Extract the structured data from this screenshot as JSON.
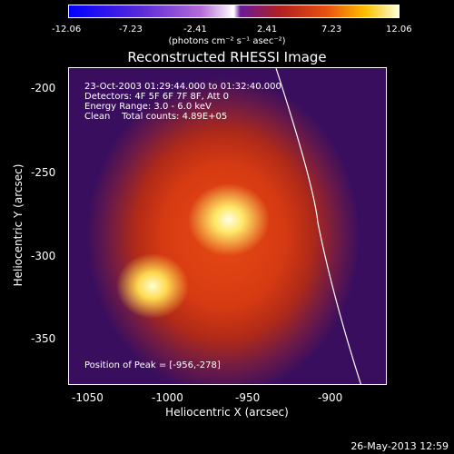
{
  "colorbar": {
    "ticks": [
      "-12.06",
      "-7.23",
      "-2.41",
      "2.41",
      "7.23",
      "12.06"
    ],
    "units": "(photons cm⁻² s⁻¹ asec⁻²)"
  },
  "title": "Reconstructed RHESSI Image",
  "info": {
    "time": "23-Oct-2003 01:29:44.000 to 01:32:40.000",
    "detectors": "Detectors: 4F 5F 6F 7F 8F, Att 0",
    "energy": "Energy Range: 3.0 - 6.0 keV",
    "clean": "Clean    Total counts: 4.89E+05",
    "peak": "Position of Peak = [-956,-278]"
  },
  "axes": {
    "ylabel": "Heliocentric Y (arcsec)",
    "xlabel": "Heliocentric X (arcsec)",
    "yticks": [
      "-200",
      "-250",
      "-300",
      "-350"
    ],
    "xticks": [
      "-1050",
      "-1000",
      "-950",
      "-900"
    ]
  },
  "footer": {
    "date": "26-May-2013 12:59"
  }
}
